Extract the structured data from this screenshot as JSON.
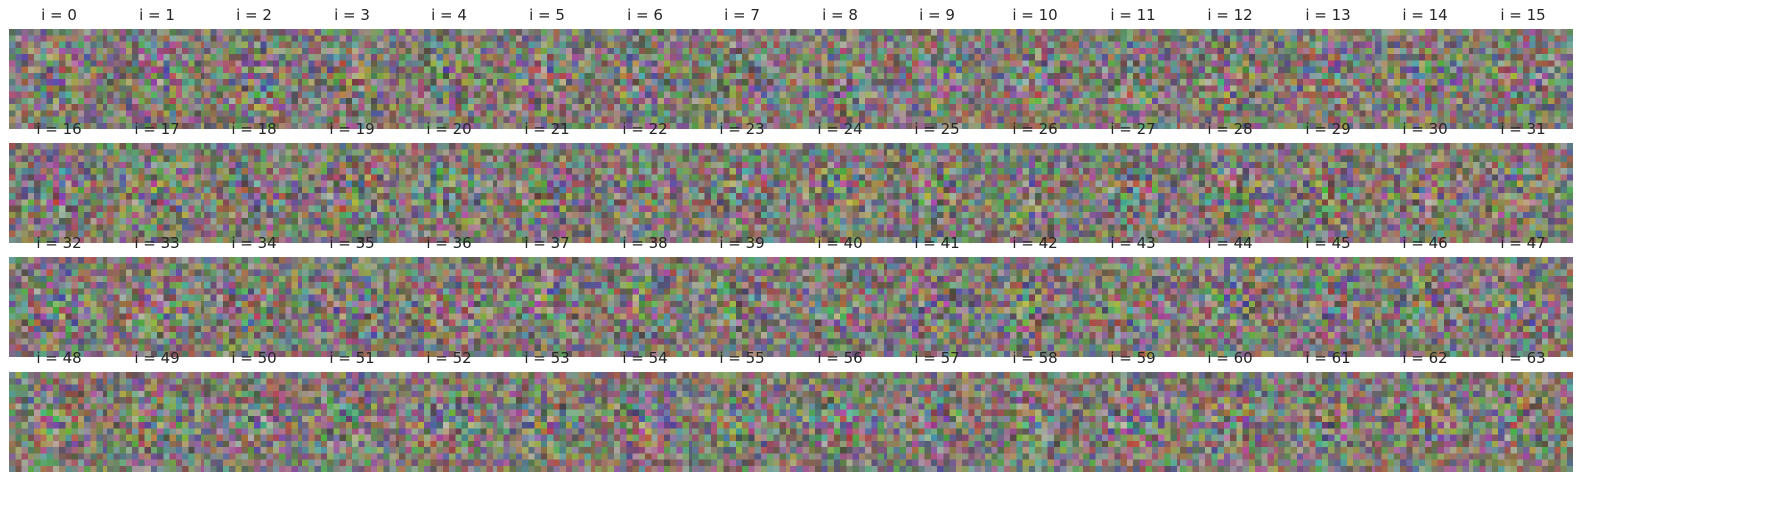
{
  "figure": {
    "grid": {
      "rows": 4,
      "cols": 16
    },
    "image_content": "noise-like filter visualizations (muted multicolor pixel noise)",
    "panels": [
      {
        "index": 0,
        "title": "i = 0"
      },
      {
        "index": 1,
        "title": "i = 1"
      },
      {
        "index": 2,
        "title": "i = 2"
      },
      {
        "index": 3,
        "title": "i = 3"
      },
      {
        "index": 4,
        "title": "i = 4"
      },
      {
        "index": 5,
        "title": "i = 5"
      },
      {
        "index": 6,
        "title": "i = 6"
      },
      {
        "index": 7,
        "title": "i = 7"
      },
      {
        "index": 8,
        "title": "i = 8"
      },
      {
        "index": 9,
        "title": "i = 9"
      },
      {
        "index": 10,
        "title": "i = 10"
      },
      {
        "index": 11,
        "title": "i = 11"
      },
      {
        "index": 12,
        "title": "i = 12"
      },
      {
        "index": 13,
        "title": "i = 13"
      },
      {
        "index": 14,
        "title": "i = 14"
      },
      {
        "index": 15,
        "title": "i = 15"
      },
      {
        "index": 16,
        "title": "i = 16"
      },
      {
        "index": 17,
        "title": "i = 17"
      },
      {
        "index": 18,
        "title": "i = 18"
      },
      {
        "index": 19,
        "title": "i = 19"
      },
      {
        "index": 20,
        "title": "i = 20"
      },
      {
        "index": 21,
        "title": "i = 21"
      },
      {
        "index": 22,
        "title": "i = 22"
      },
      {
        "index": 23,
        "title": "i = 23"
      },
      {
        "index": 24,
        "title": "i = 24"
      },
      {
        "index": 25,
        "title": "i = 25"
      },
      {
        "index": 26,
        "title": "i = 26"
      },
      {
        "index": 27,
        "title": "i = 27"
      },
      {
        "index": 28,
        "title": "i = 28"
      },
      {
        "index": 29,
        "title": "i = 29"
      },
      {
        "index": 30,
        "title": "i = 30"
      },
      {
        "index": 31,
        "title": "i = 31"
      },
      {
        "index": 32,
        "title": "i = 32"
      },
      {
        "index": 33,
        "title": "i = 33"
      },
      {
        "index": 34,
        "title": "i = 34"
      },
      {
        "index": 35,
        "title": "i = 35"
      },
      {
        "index": 36,
        "title": "i = 36"
      },
      {
        "index": 37,
        "title": "i = 37"
      },
      {
        "index": 38,
        "title": "i = 38"
      },
      {
        "index": 39,
        "title": "i = 39"
      },
      {
        "index": 40,
        "title": "i = 40"
      },
      {
        "index": 41,
        "title": "i = 41"
      },
      {
        "index": 42,
        "title": "i = 42"
      },
      {
        "index": 43,
        "title": "i = 43"
      },
      {
        "index": 44,
        "title": "i = 44"
      },
      {
        "index": 45,
        "title": "i = 45"
      },
      {
        "index": 46,
        "title": "i = 46"
      },
      {
        "index": 47,
        "title": "i = 47"
      },
      {
        "index": 48,
        "title": "i = 48"
      },
      {
        "index": 49,
        "title": "i = 49"
      },
      {
        "index": 50,
        "title": "i = 50"
      },
      {
        "index": 51,
        "title": "i = 51"
      },
      {
        "index": 52,
        "title": "i = 52"
      },
      {
        "index": 53,
        "title": "i = 53"
      },
      {
        "index": 54,
        "title": "i = 54"
      },
      {
        "index": 55,
        "title": "i = 55"
      },
      {
        "index": 56,
        "title": "i = 56"
      },
      {
        "index": 57,
        "title": "i = 57"
      },
      {
        "index": 58,
        "title": "i = 58"
      },
      {
        "index": 59,
        "title": "i = 59"
      },
      {
        "index": 60,
        "title": "i = 60"
      },
      {
        "index": 61,
        "title": "i = 61"
      },
      {
        "index": 62,
        "title": "i = 62"
      },
      {
        "index": 63,
        "title": "i = 63"
      }
    ]
  }
}
